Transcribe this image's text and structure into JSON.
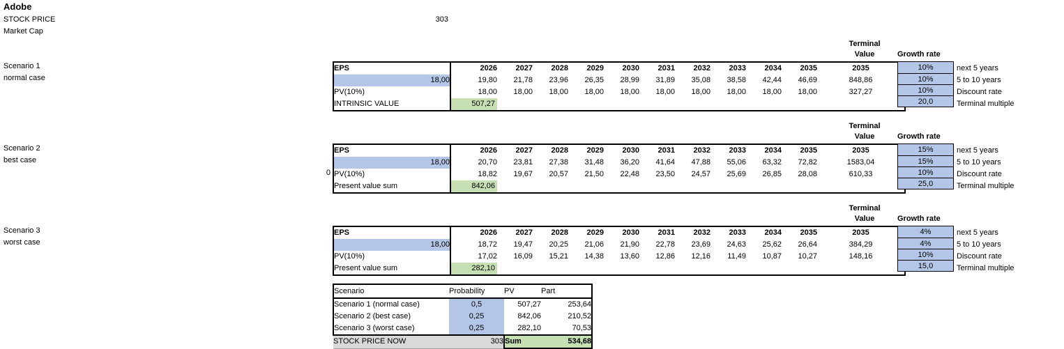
{
  "header": {
    "company": "Adobe",
    "stock_price_label": "STOCK PRICE",
    "stock_price_value": "303",
    "market_cap_label": "Market Cap"
  },
  "colors": {
    "input_blue": "#B4C6E7",
    "result_green": "#C6E0B4",
    "row_gray": "#D9D9D9",
    "border_black": "#000000"
  },
  "years": [
    "2026",
    "2027",
    "2028",
    "2029",
    "2030",
    "2031",
    "2032",
    "2033",
    "2034",
    "2035"
  ],
  "terminal_header": [
    "Terminal",
    "Value"
  ],
  "terminal_year": "2035",
  "growth_rate_header": "Growth rate",
  "growth_labels": [
    "next 5 years",
    "5 to 10 years",
    "Discount rate",
    "Terminal multiple"
  ],
  "scenarios": [
    {
      "name": "Scenario 1",
      "case": "normal case",
      "eps_label": "EPS",
      "start_eps": "18,00",
      "pv_label": "PV(10%)",
      "sum_label": "INTRINSIC VALUE",
      "sum_value": "507,27",
      "eps_values": [
        "19,80",
        "21,78",
        "23,96",
        "26,35",
        "28,99",
        "31,89",
        "35,08",
        "38,58",
        "42,44",
        "46,69"
      ],
      "eps_terminal": "848,86",
      "pv_values": [
        "18,00",
        "18,00",
        "18,00",
        "18,00",
        "18,00",
        "18,00",
        "18,00",
        "18,00",
        "18,00",
        "18,00"
      ],
      "pv_terminal": "327,27",
      "growth_values": [
        "10%",
        "10%",
        "10%",
        "20,0"
      ],
      "left_note": ""
    },
    {
      "name": "Scenario 2",
      "case": "best case",
      "eps_label": "EPS",
      "start_eps": "18,00",
      "pv_label": "PV(10%)",
      "sum_label": "Present value sum",
      "sum_value": "842,06",
      "eps_values": [
        "20,70",
        "23,81",
        "27,38",
        "31,48",
        "36,20",
        "41,64",
        "47,88",
        "55,06",
        "63,32",
        "72,82"
      ],
      "eps_terminal": "1583,04",
      "pv_values": [
        "18,82",
        "19,67",
        "20,57",
        "21,50",
        "22,48",
        "23,50",
        "24,57",
        "25,69",
        "26,85",
        "28,08"
      ],
      "pv_terminal": "610,33",
      "growth_values": [
        "15%",
        "15%",
        "10%",
        "25,0"
      ],
      "left_note": "0"
    },
    {
      "name": "Scenario 3",
      "case": "worst case",
      "eps_label": "EPS",
      "start_eps": "18,00",
      "pv_label": "PV(10%)",
      "sum_label": "Present value sum",
      "sum_value": "282,10",
      "eps_values": [
        "18,72",
        "19,47",
        "20,25",
        "21,06",
        "21,90",
        "22,78",
        "23,69",
        "24,63",
        "25,62",
        "26,64"
      ],
      "eps_terminal": "384,29",
      "pv_values": [
        "17,02",
        "16,09",
        "15,21",
        "14,38",
        "13,60",
        "12,86",
        "12,16",
        "11,49",
        "10,87",
        "10,27"
      ],
      "pv_terminal": "148,16",
      "growth_values": [
        "4%",
        "4%",
        "10%",
        "15,0"
      ],
      "left_note": ""
    }
  ],
  "summary": {
    "headers": [
      "Scenario",
      "Probability",
      "PV",
      "Part"
    ],
    "rows": [
      [
        "Scenario 1 (normal case)",
        "0,5",
        "507,27",
        "253,64"
      ],
      [
        "Scenario 2 (best case)",
        "0,25",
        "842,06",
        "210,52"
      ],
      [
        "Scenario 3 (worst case)",
        "0,25",
        "282,10",
        "70,53"
      ]
    ],
    "stock_price_now_label": "STOCK PRICE NOW",
    "stock_price_now_value": "303",
    "sum_label": "Sum",
    "sum_value": "534,68"
  }
}
